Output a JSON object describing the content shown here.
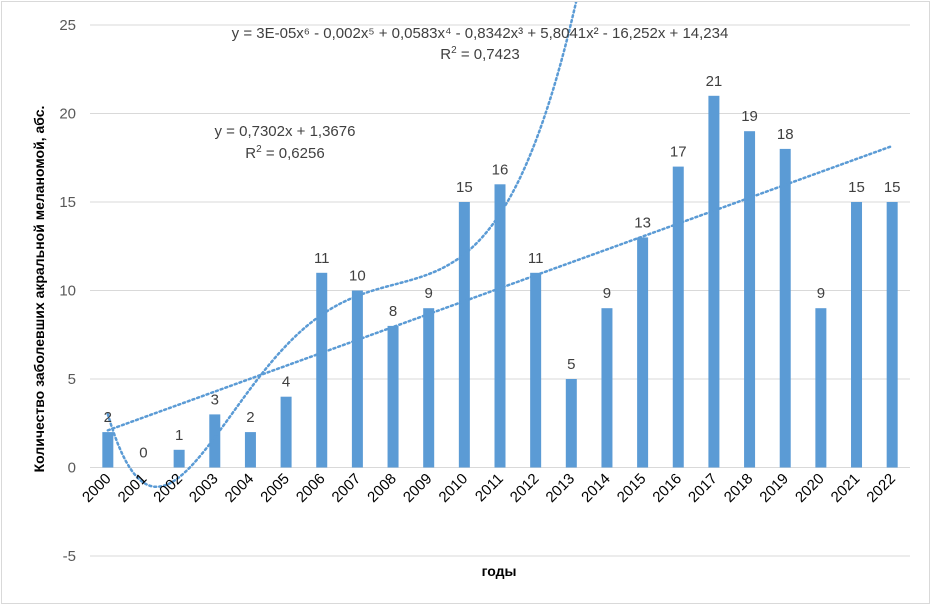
{
  "chart_data": {
    "type": "bar",
    "title": "",
    "xlabel": "годы",
    "ylabel": "Количество заболевших акральной меланомой, абс.",
    "ylim": [
      -5,
      25
    ],
    "yticks": [
      -5,
      0,
      5,
      10,
      15,
      20,
      25
    ],
    "grid": true,
    "legend": "none",
    "categories": [
      "2000",
      "2001",
      "2002",
      "2003",
      "2004",
      "2005",
      "2006",
      "2007",
      "2008",
      "2009",
      "2010",
      "2011",
      "2012",
      "2013",
      "2014",
      "2015",
      "2016",
      "2017",
      "2018",
      "2019",
      "2020",
      "2021",
      "2022"
    ],
    "values": [
      2,
      0,
      1,
      3,
      2,
      4,
      11,
      10,
      8,
      9,
      15,
      16,
      11,
      5,
      9,
      13,
      17,
      21,
      19,
      18,
      9,
      15,
      15
    ],
    "series_color": "#5b9bd5",
    "trendlines": [
      {
        "name": "linear",
        "equation": "y = 0,7302x + 1,3676",
        "r2_prefix": "R",
        "r2_sup": "2",
        "r2_value": " = 0,6256",
        "coefficients": [
          1.3676,
          0.7302
        ]
      },
      {
        "name": "polynomial-6",
        "equation": "y = 3E-05x⁶ - 0,002x⁵ + 0,0583x⁴ - 0,8342x³ + 5,8041x² - 16,252x + 14,234",
        "r2_prefix": "R",
        "r2_sup": "2",
        "r2_value": " = 0,7423",
        "coefficients": [
          14.234,
          -16.252,
          5.8041,
          -0.8342,
          0.0583,
          -0.002,
          3e-05
        ]
      }
    ]
  }
}
